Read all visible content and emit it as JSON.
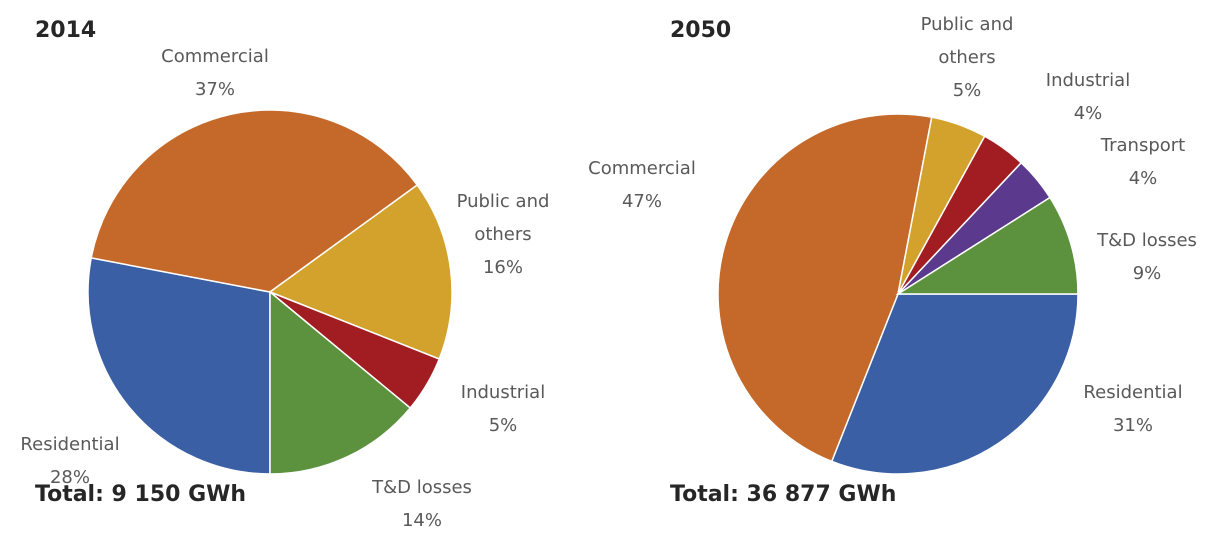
{
  "chart_data": [
    {
      "type": "pie",
      "title": "2014",
      "total": "Total: 9 150 GWh",
      "start_angle": 90,
      "categories": [
        "Residential",
        "Commercial",
        "Public and others",
        "Industrial",
        "T&D losses"
      ],
      "values": [
        28,
        37,
        16,
        5,
        14
      ],
      "value_labels": [
        "28%",
        "37%",
        "16%",
        "5%",
        "14%"
      ],
      "colors": [
        "#3a5fa5",
        "#c5692a",
        "#d3a22c",
        "#a11d21",
        "#5c913e"
      ]
    },
    {
      "type": "pie",
      "title": "2050",
      "total": "Total: 36 877 GWh",
      "start_angle": 0,
      "categories": [
        "Residential",
        "Commercial",
        "Public and others",
        "Industrial",
        "Transport",
        "T&D losses"
      ],
      "values": [
        31,
        47,
        5,
        4,
        4,
        9
      ],
      "value_labels": [
        "31%",
        "47%",
        "5%",
        "4%",
        "4%",
        "9%"
      ],
      "colors": [
        "#3a5fa5",
        "#c5692a",
        "#d3a22c",
        "#a11d21",
        "#5b3a8e",
        "#5c913e"
      ]
    }
  ]
}
